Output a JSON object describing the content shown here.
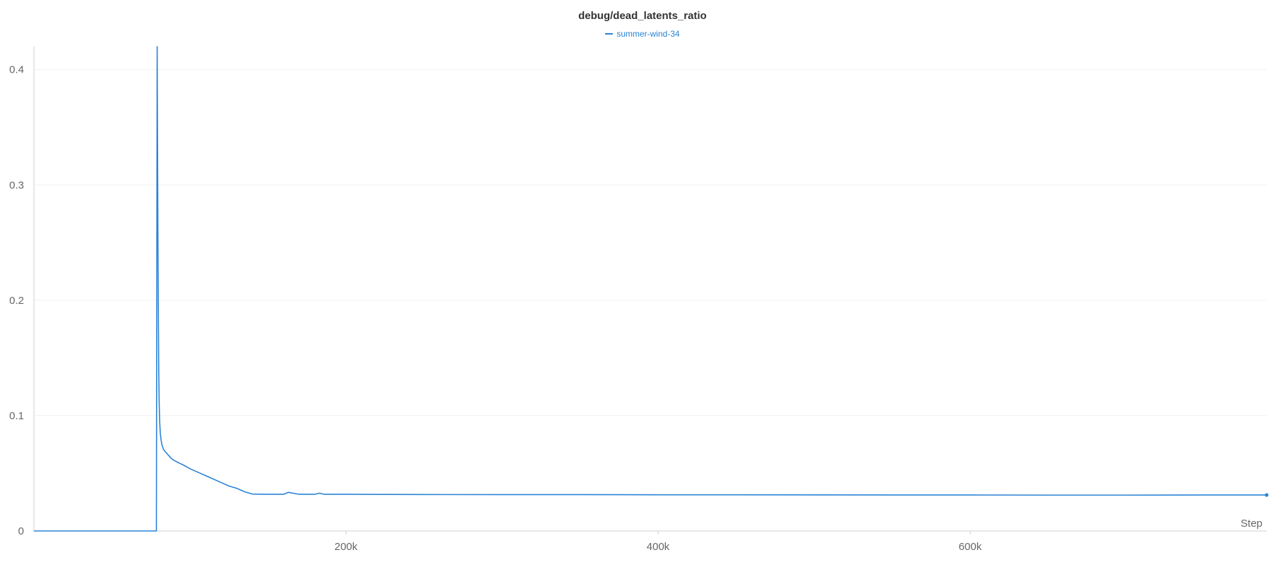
{
  "chart_data": {
    "type": "line",
    "title": "debug/dead_latents_ratio",
    "xlabel": "Step",
    "ylabel": "",
    "xlim": [
      0,
      790000
    ],
    "ylim": [
      0,
      0.42
    ],
    "grid": true,
    "legend_position": "top-center",
    "x_ticks": [
      {
        "value": 200000,
        "label": "200k"
      },
      {
        "value": 400000,
        "label": "400k"
      },
      {
        "value": 600000,
        "label": "600k"
      }
    ],
    "y_ticks": [
      {
        "value": 0,
        "label": "0"
      },
      {
        "value": 0.1,
        "label": "0.1"
      },
      {
        "value": 0.2,
        "label": "0.2"
      },
      {
        "value": 0.3,
        "label": "0.3"
      },
      {
        "value": 0.4,
        "label": "0.4"
      }
    ],
    "series": [
      {
        "name": "summer-wind-34",
        "color": "#2b83d6",
        "x": [
          0,
          78500,
          79000,
          79200,
          79500,
          79800,
          80000,
          80300,
          80600,
          81000,
          81500,
          82000,
          83000,
          84000,
          86000,
          88000,
          90000,
          93000,
          96000,
          100000,
          105000,
          110000,
          115000,
          120000,
          125000,
          130000,
          135000,
          140000,
          150000,
          155000,
          160000,
          163000,
          170000,
          180000,
          183000,
          186000,
          200000,
          250000,
          300000,
          350000,
          400000,
          450000,
          500000,
          550000,
          600000,
          650000,
          700000,
          750000,
          790000
        ],
        "y": [
          0,
          0,
          0.42,
          0.35,
          0.25,
          0.18,
          0.14,
          0.11,
          0.095,
          0.085,
          0.079,
          0.075,
          0.071,
          0.069,
          0.066,
          0.063,
          0.061,
          0.059,
          0.057,
          0.054,
          0.051,
          0.048,
          0.045,
          0.042,
          0.039,
          0.037,
          0.034,
          0.032,
          0.0318,
          0.0318,
          0.0318,
          0.0335,
          0.0318,
          0.0318,
          0.0328,
          0.0318,
          0.0318,
          0.0316,
          0.0315,
          0.0315,
          0.0314,
          0.0314,
          0.0313,
          0.0312,
          0.0312,
          0.0311,
          0.0311,
          0.0312,
          0.0312
        ]
      }
    ]
  }
}
